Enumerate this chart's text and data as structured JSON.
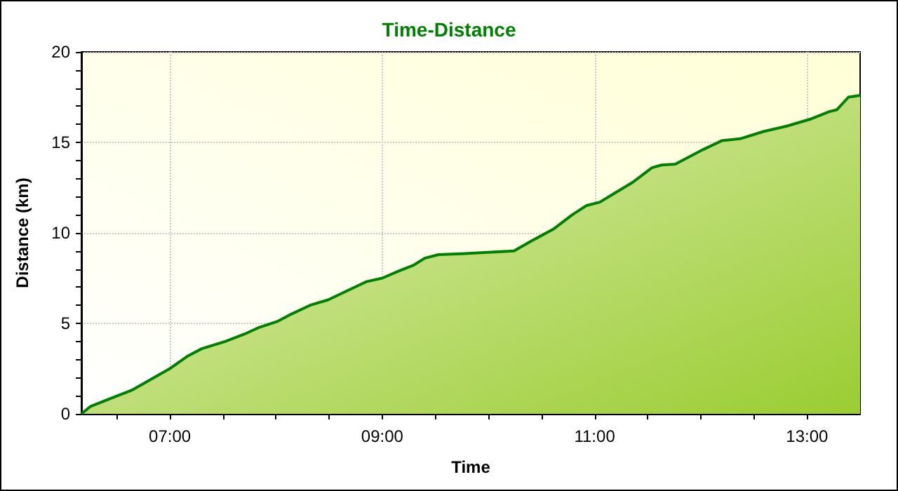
{
  "chart_data": {
    "type": "area",
    "title": "Time-Distance",
    "xlabel": "Time",
    "ylabel": "Distance (km)",
    "x": [
      6.167,
      6.25,
      6.42,
      6.64,
      6.82,
      7.0,
      7.17,
      7.3,
      7.52,
      7.7,
      7.83,
      8.01,
      8.14,
      8.32,
      8.49,
      8.67,
      8.85,
      9.0,
      9.16,
      9.29,
      9.4,
      9.53,
      9.75,
      10.24,
      10.42,
      10.61,
      10.79,
      10.92,
      11.05,
      11.19,
      11.36,
      11.54,
      11.63,
      11.76,
      12.02,
      12.2,
      12.37,
      12.59,
      12.81,
      13.04,
      13.21,
      13.28,
      13.39,
      13.5
    ],
    "series": [
      {
        "color": "#008000",
        "values": [
          0,
          0.4,
          0.8,
          1.3,
          1.9,
          2.5,
          3.2,
          3.6,
          4.0,
          4.4,
          4.75,
          5.1,
          5.5,
          6.0,
          6.3,
          6.8,
          7.3,
          7.5,
          7.9,
          8.2,
          8.6,
          8.8,
          8.85,
          9.0,
          9.6,
          10.2,
          11.0,
          11.5,
          11.7,
          12.2,
          12.8,
          13.6,
          13.75,
          13.8,
          14.6,
          15.1,
          15.2,
          15.6,
          15.9,
          16.3,
          16.7,
          16.8,
          17.5,
          17.6
        ]
      }
    ],
    "xlim": [
      6.167,
      13.5
    ],
    "xticks": [
      {
        "value": 6.5,
        "label": null
      },
      {
        "value": 7,
        "label": "07:00"
      },
      {
        "value": 7.5,
        "label": null
      },
      {
        "value": 8,
        "label": null
      },
      {
        "value": 8.5,
        "label": null
      },
      {
        "value": 9,
        "label": "09:00"
      },
      {
        "value": 9.5,
        "label": null
      },
      {
        "value": 10,
        "label": null
      },
      {
        "value": 10.5,
        "label": null
      },
      {
        "value": 11,
        "label": "11:00"
      },
      {
        "value": 11.5,
        "label": null
      },
      {
        "value": 12,
        "label": null
      },
      {
        "value": 12.5,
        "label": null
      },
      {
        "value": 13,
        "label": "13:00"
      }
    ],
    "ylim": [
      0,
      20
    ],
    "yticks": [
      0,
      {
        "value": 1,
        "label": null
      },
      {
        "value": 2,
        "label": null
      },
      {
        "value": 3,
        "label": null
      },
      {
        "value": 4,
        "label": null
      },
      5,
      {
        "value": 6,
        "label": null
      },
      {
        "value": 7,
        "label": null
      },
      {
        "value": 8,
        "label": null
      },
      {
        "value": 9,
        "label": null
      },
      10,
      {
        "value": 11,
        "label": null
      },
      {
        "value": 12,
        "label": null
      },
      {
        "value": 13,
        "label": null
      },
      {
        "value": 14,
        "label": null
      },
      15,
      {
        "value": 16,
        "label": null
      },
      {
        "value": 17,
        "label": null
      },
      {
        "value": 18,
        "label": null
      },
      {
        "value": 19,
        "label": null
      },
      20
    ],
    "grid": true,
    "marker": "none",
    "line_style": "solid"
  }
}
